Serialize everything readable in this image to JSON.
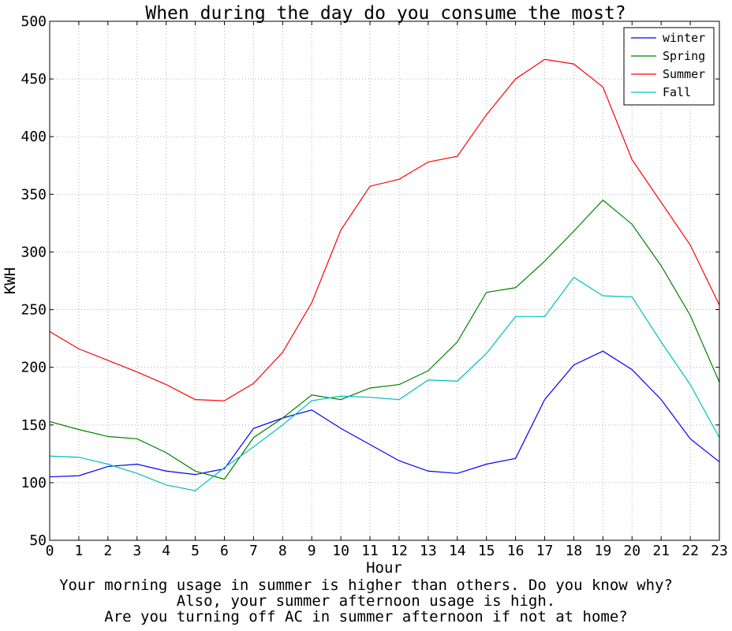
{
  "chart_data": {
    "type": "line",
    "title": "When during the day do you consume the most?",
    "xlabel": "Hour",
    "ylabel": "KWH",
    "x": [
      0,
      1,
      2,
      3,
      4,
      5,
      6,
      7,
      8,
      9,
      10,
      11,
      12,
      13,
      14,
      15,
      16,
      17,
      18,
      19,
      20,
      21,
      22,
      23
    ],
    "xlim": [
      0,
      23
    ],
    "ylim": [
      50,
      500
    ],
    "yticks": [
      50,
      100,
      150,
      200,
      250,
      300,
      350,
      400,
      450,
      500
    ],
    "grid": true,
    "legend_position": "top-right",
    "series": [
      {
        "name": "winter",
        "color": "#0000ff",
        "values": [
          105,
          106,
          114,
          116,
          110,
          107,
          112,
          147,
          156,
          163,
          147,
          133,
          119,
          110,
          108,
          116,
          121,
          172,
          202,
          214,
          198,
          172,
          138,
          118
        ]
      },
      {
        "name": "Spring",
        "color": "#008000",
        "values": [
          153,
          146,
          140,
          138,
          126,
          110,
          103,
          139,
          156,
          176,
          172,
          182,
          185,
          197,
          222,
          265,
          269,
          292,
          318,
          345,
          324,
          288,
          245,
          187
        ]
      },
      {
        "name": "Summer",
        "color": "#ff0000",
        "values": [
          231,
          216,
          206,
          196,
          185,
          172,
          171,
          186,
          213,
          256,
          319,
          357,
          363,
          378,
          383,
          419,
          450,
          467,
          463,
          443,
          380,
          343,
          306,
          254
        ]
      },
      {
        "name": "Fall",
        "color": "#00bfbf",
        "values": [
          123,
          122,
          116,
          108,
          98,
          93,
          113,
          131,
          150,
          171,
          175,
          174,
          172,
          189,
          188,
          212,
          244,
          244,
          278,
          262,
          261,
          222,
          185,
          139
        ]
      }
    ]
  },
  "caption": {
    "lines": [
      "Your morning usage in summer is higher than others. Do you know why?",
      "Also, your summer afternoon usage is high.",
      "Are you turning off AC in summer afternoon if not at home?"
    ]
  }
}
